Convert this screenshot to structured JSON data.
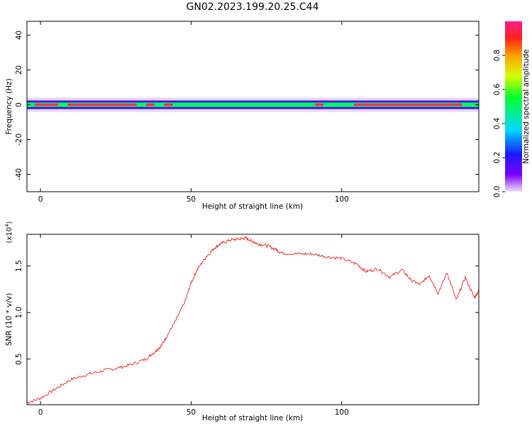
{
  "title": "GN02.2023.199.20.25.C44",
  "chart_data": [
    {
      "type": "heatmap",
      "xlabel": "Height of straight line (km)",
      "ylabel": "Frequency (Hz)",
      "xlim": [
        -4.5,
        145.5
      ],
      "ylim": [
        -50,
        48
      ],
      "x_ticks": [
        0,
        50,
        100
      ],
      "y_ticks": [
        -40,
        -20,
        0,
        20,
        40
      ],
      "grid": false,
      "colorbar": {
        "label": "Normalized spectral amplitude",
        "range": [
          0,
          1
        ],
        "ticks": [
          0.0,
          0.2,
          0.4,
          0.6,
          0.8
        ],
        "colormap": "rainbow (purple to red)"
      },
      "ridge": {
        "description": "narrow band of spectral energy centred near 0 Hz across all heights",
        "center_frequency_hz": 0,
        "peak_amplitude_segments_km": [
          [
            -2,
            6
          ],
          [
            9,
            32
          ],
          [
            35,
            38
          ],
          [
            41,
            44
          ],
          [
            91,
            94
          ],
          [
            104,
            140
          ]
        ],
        "peak_amplitude": 0.97
      },
      "colors": {
        "low": "#e6d9ff",
        "mid_low": "#4b00ff",
        "mid": "#00ff55",
        "high": "#ff3050"
      }
    },
    {
      "type": "line",
      "xlabel": "Height of straight line (km)",
      "ylabel": "SNR (10 * v/v)",
      "y_multiplier": "(x10^4)",
      "xlim": [
        -4.5,
        145.5
      ],
      "ylim": [
        0.01,
        1.84
      ],
      "x_ticks": [
        0,
        50,
        100
      ],
      "y_ticks": [
        0.5,
        1.0,
        1.5
      ],
      "grid": false,
      "series": [
        {
          "color": "#e83a3a",
          "x": [
            -4.5,
            0,
            5,
            10,
            15,
            20,
            25,
            30,
            35,
            38,
            40,
            42,
            45,
            48,
            50,
            52,
            55,
            58,
            60,
            63,
            66,
            68,
            70,
            72,
            75,
            78,
            80,
            85,
            90,
            95,
            100,
            105,
            108,
            112,
            116,
            120,
            123,
            126,
            129,
            132,
            135,
            138,
            141,
            144,
            145.5
          ],
          "y": [
            0.03,
            0.08,
            0.18,
            0.28,
            0.33,
            0.37,
            0.4,
            0.44,
            0.5,
            0.58,
            0.64,
            0.75,
            0.92,
            1.12,
            1.32,
            1.46,
            1.6,
            1.7,
            1.74,
            1.78,
            1.79,
            1.8,
            1.77,
            1.74,
            1.72,
            1.68,
            1.64,
            1.63,
            1.63,
            1.6,
            1.58,
            1.52,
            1.44,
            1.47,
            1.38,
            1.46,
            1.35,
            1.3,
            1.4,
            1.21,
            1.43,
            1.13,
            1.38,
            1.16,
            1.23
          ]
        }
      ]
    }
  ]
}
